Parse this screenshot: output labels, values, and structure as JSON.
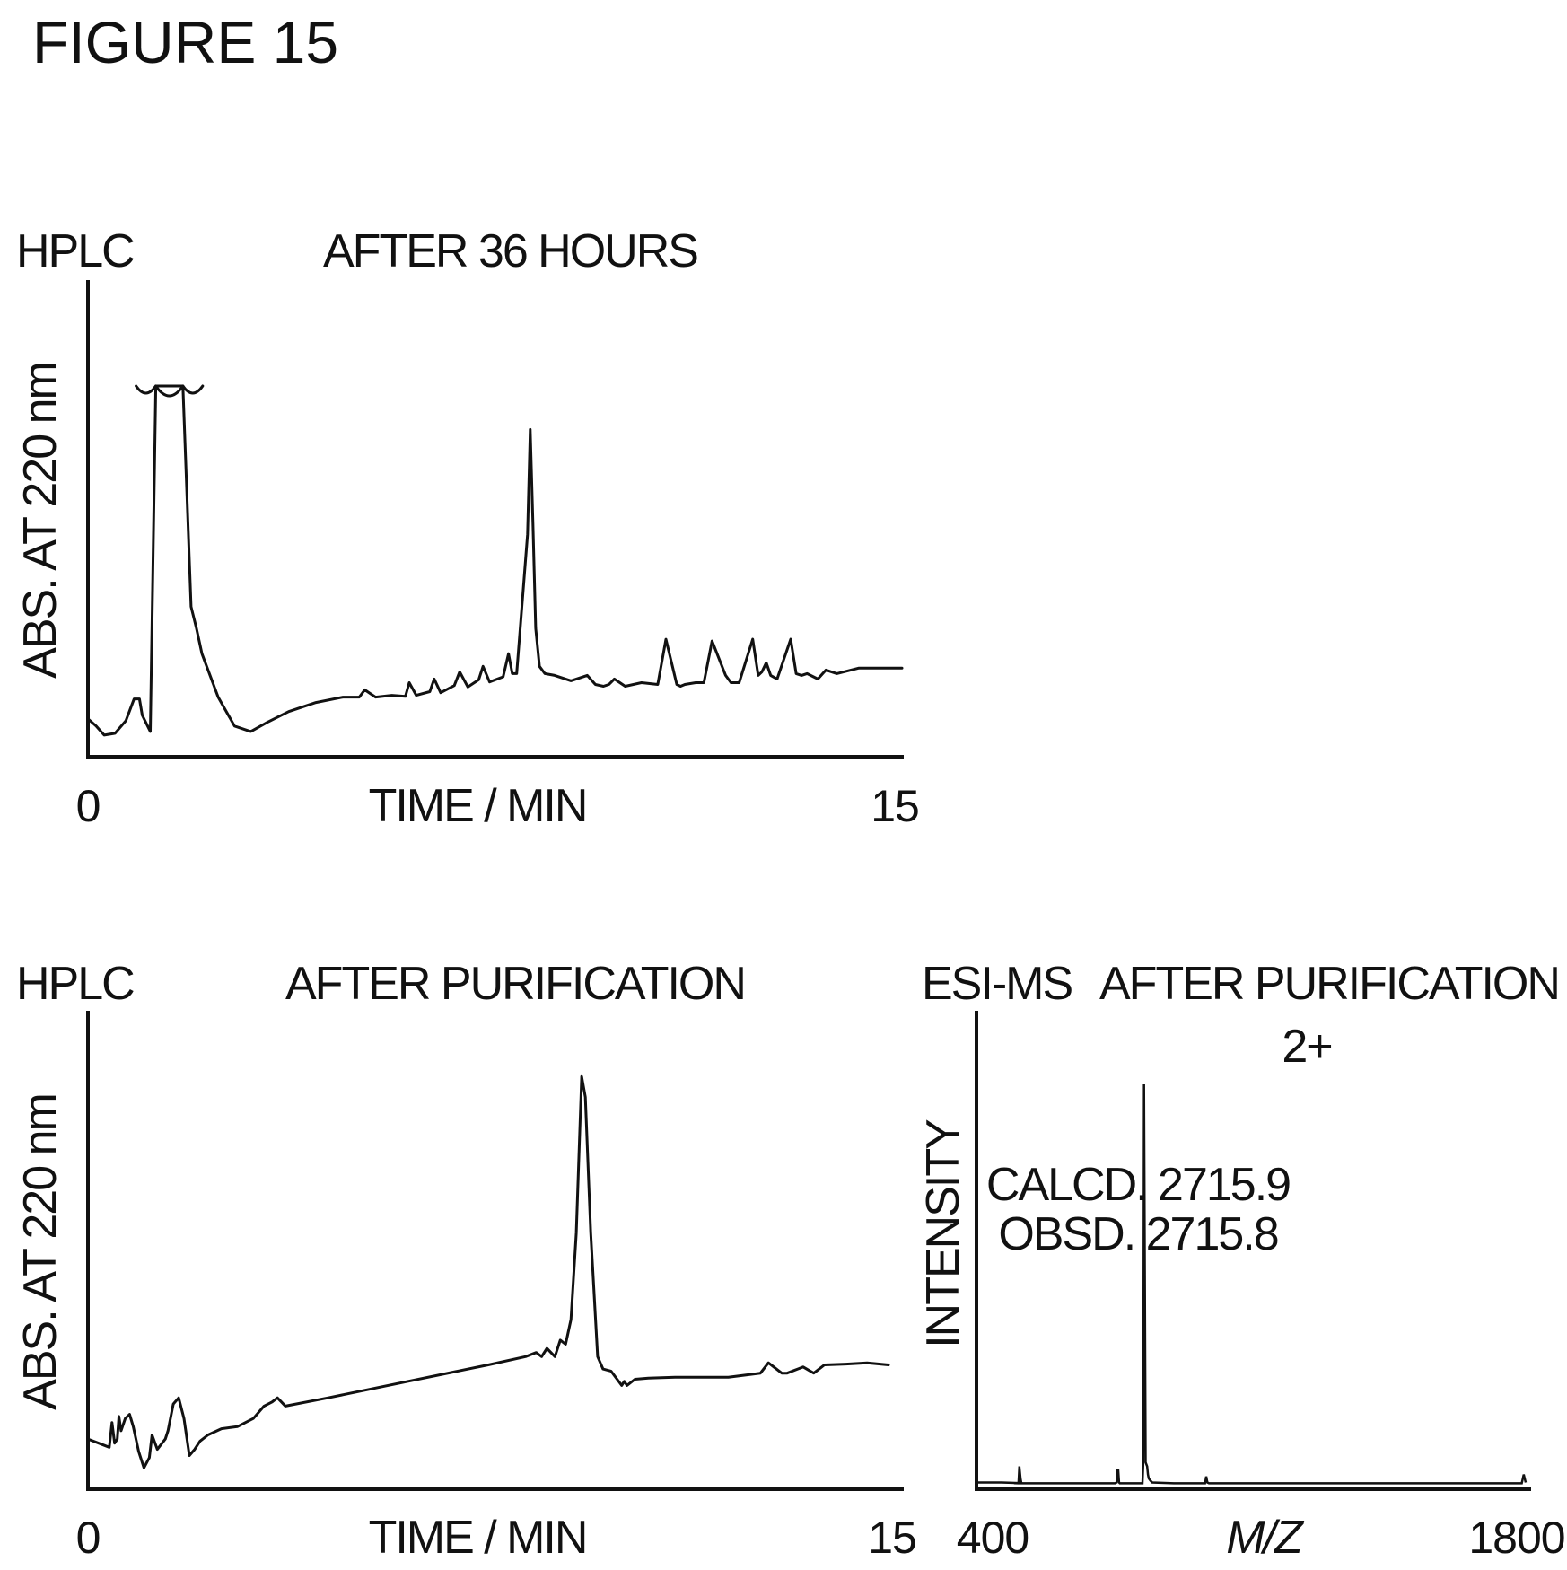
{
  "figure_title": "FIGURE 15",
  "chart_data": [
    {
      "type": "line",
      "panel_label": "HPLC",
      "title": "AFTER 36 HOURS",
      "xlabel": "TIME / MIN",
      "ylabel": "ABS. AT 220 nm",
      "x_ticks": [
        "0",
        "15"
      ],
      "xlim": [
        0,
        15
      ],
      "ylim": [
        0,
        1
      ],
      "grid": false,
      "off_scale_peak": true,
      "series": [
        {
          "x": [
            0,
            0.15,
            0.3,
            0.5,
            0.7,
            0.85,
            0.95,
            1.0,
            1.15,
            1.25,
            1.3,
            1.45,
            1.6,
            1.75,
            1.9,
            2.0,
            2.1,
            2.4,
            2.7,
            3.0,
            3.3,
            3.7,
            4.2,
            4.7,
            5.0,
            5.1,
            5.3,
            5.6,
            5.85,
            5.92,
            6.05,
            6.3,
            6.38,
            6.5,
            6.75,
            6.85,
            7.0,
            7.2,
            7.28,
            7.4,
            7.65,
            7.75,
            7.82,
            7.9,
            8.1,
            8.15,
            8.2,
            8.25,
            8.32,
            8.42,
            8.6,
            8.9,
            9.2,
            9.35,
            9.5,
            9.6,
            9.7,
            9.9,
            10.2,
            10.5,
            10.65,
            10.85,
            10.92,
            11.0,
            11.2,
            11.35,
            11.5,
            11.75,
            11.85,
            12.0,
            12.25,
            12.35,
            12.42,
            12.5,
            12.58,
            12.7,
            12.95,
            13.05,
            13.15,
            13.25,
            13.45,
            13.6,
            13.8,
            14.2,
            15.0
          ],
          "y": [
            0.08,
            0.06,
            0.035,
            0.04,
            0.075,
            0.135,
            0.135,
            0.09,
            0.045,
            1.0,
            1.0,
            1.0,
            1.0,
            1.0,
            0.39,
            0.33,
            0.26,
            0.14,
            0.06,
            0.045,
            0.07,
            0.1,
            0.125,
            0.14,
            0.14,
            0.16,
            0.14,
            0.145,
            0.142,
            0.18,
            0.145,
            0.155,
            0.19,
            0.152,
            0.172,
            0.21,
            0.168,
            0.188,
            0.225,
            0.182,
            0.196,
            0.26,
            0.205,
            0.205,
            0.59,
            0.88,
            0.62,
            0.33,
            0.225,
            0.205,
            0.2,
            0.185,
            0.2,
            0.175,
            0.17,
            0.175,
            0.19,
            0.17,
            0.18,
            0.175,
            0.3,
            0.175,
            0.17,
            0.175,
            0.18,
            0.18,
            0.295,
            0.2,
            0.18,
            0.18,
            0.3,
            0.2,
            0.21,
            0.235,
            0.2,
            0.19,
            0.3,
            0.205,
            0.2,
            0.205,
            0.19,
            0.215,
            0.205,
            0.22,
            0.22
          ]
        }
      ]
    },
    {
      "type": "line",
      "panel_label": "HPLC",
      "title": "AFTER PURIFICATION",
      "xlabel": "TIME / MIN",
      "ylabel": "ABS. AT 220 nm",
      "x_ticks": [
        "0",
        "15"
      ],
      "xlim": [
        0,
        15
      ],
      "ylim": [
        0,
        1
      ],
      "grid": false,
      "series": [
        {
          "x": [
            0,
            0.2,
            0.4,
            0.45,
            0.5,
            0.55,
            0.58,
            0.62,
            0.7,
            0.78,
            0.85,
            0.95,
            1.05,
            1.15,
            1.2,
            1.3,
            1.45,
            1.5,
            1.6,
            1.7,
            1.8,
            1.9,
            2.0,
            2.1,
            2.25,
            2.5,
            2.8,
            3.1,
            3.3,
            3.45,
            3.55,
            3.7,
            4.5,
            6.0,
            7.5,
            8.2,
            8.4,
            8.5,
            8.6,
            8.75,
            8.85,
            8.95,
            9.05,
            9.15,
            9.25,
            9.32,
            9.42,
            9.55,
            9.65,
            9.8,
            10.0,
            10.05,
            10.1,
            10.25,
            10.5,
            11.0,
            12.0,
            12.6,
            12.75,
            12.9,
            13.0,
            13.1,
            13.4,
            13.6,
            13.8,
            14.2,
            14.6,
            15.0
          ],
          "y": [
            0.1,
            0.09,
            0.08,
            0.14,
            0.09,
            0.1,
            0.155,
            0.12,
            0.15,
            0.16,
            0.13,
            0.07,
            0.03,
            0.055,
            0.11,
            0.075,
            0.1,
            0.12,
            0.185,
            0.2,
            0.15,
            0.06,
            0.075,
            0.095,
            0.11,
            0.125,
            0.13,
            0.15,
            0.18,
            0.19,
            0.2,
            0.18,
            0.2,
            0.24,
            0.28,
            0.3,
            0.31,
            0.3,
            0.32,
            0.3,
            0.34,
            0.33,
            0.39,
            0.6,
            0.98,
            0.93,
            0.6,
            0.3,
            0.27,
            0.265,
            0.23,
            0.24,
            0.23,
            0.245,
            0.248,
            0.25,
            0.25,
            0.26,
            0.285,
            0.27,
            0.26,
            0.26,
            0.275,
            0.26,
            0.28,
            0.282,
            0.285,
            0.28
          ]
        }
      ]
    },
    {
      "type": "line",
      "panel_label": "ESI-MS",
      "title": "AFTER PURIFICATION",
      "xlabel": "M/Z",
      "ylabel": "INTENSITY",
      "x_ticks": [
        "400",
        "1800"
      ],
      "xlim": [
        400,
        1800
      ],
      "ylim": [
        0,
        1
      ],
      "grid": false,
      "peak_label": "2+",
      "annotations": [
        "CALCD. 2715.9",
        "OBSD. 2715.8"
      ],
      "series": [
        {
          "x": [
            400,
            460,
            520,
            500,
            503,
            505,
            508,
            510,
            512,
            560,
            750,
            754,
            756,
            758,
            760,
            762,
            800,
            820,
            822,
            824,
            828,
            832,
            834,
            836,
            840,
            845,
            900,
            980,
            983,
            986,
            990,
            1500,
            1790,
            1795,
            1800
          ],
          "y": [
            0.01,
            0.01,
            0.008,
            0.008,
            0.01,
            0.05,
            0.02,
            0.01,
            0.008,
            0.008,
            0.008,
            0.01,
            0.04,
            0.04,
            0.01,
            0.008,
            0.008,
            0.008,
            0.06,
            1.0,
            0.06,
            0.05,
            0.03,
            0.02,
            0.015,
            0.01,
            0.008,
            0.008,
            0.025,
            0.01,
            0.008,
            0.008,
            0.008,
            0.03,
            0.01
          ]
        }
      ]
    }
  ]
}
